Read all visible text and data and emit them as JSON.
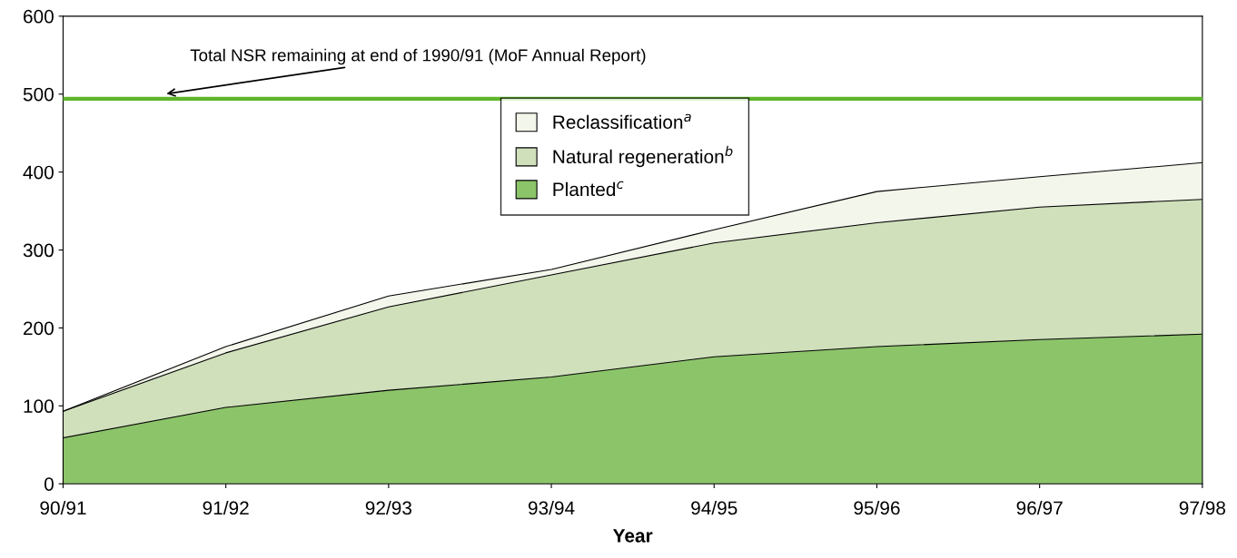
{
  "chart_data": {
    "type": "area",
    "stacked": true,
    "xlabel": "Year",
    "categories": [
      "90/91",
      "91/92",
      "92/93",
      "93/94",
      "94/95",
      "95/96",
      "96/97",
      "97/98"
    ],
    "series": [
      {
        "name": "Planted$^{c}$",
        "color": "#8cc46a",
        "values": [
          59,
          98,
          120,
          137,
          163,
          176,
          185,
          192
        ]
      },
      {
        "name": "Natural regeneration$^{b}$",
        "color": "#cfe0bb",
        "values": [
          34,
          70,
          107,
          131,
          146,
          159,
          170,
          173
        ]
      },
      {
        "name": "Reclassification$^{a}$",
        "color": "#f3f6eb",
        "values": [
          0,
          8,
          14,
          7,
          17,
          40,
          39,
          47
        ]
      }
    ],
    "ylim": [
      0,
      600
    ],
    "yticks": [
      0,
      100,
      200,
      300,
      400,
      500,
      600
    ],
    "ref_lines": [
      {
        "axis": "y",
        "value": 494,
        "label": "Total NSR remaining at end of 1990/91 (MoF Annual Report)",
        "color": "#5fb52a"
      }
    ],
    "legend": "top",
    "grid": false
  }
}
